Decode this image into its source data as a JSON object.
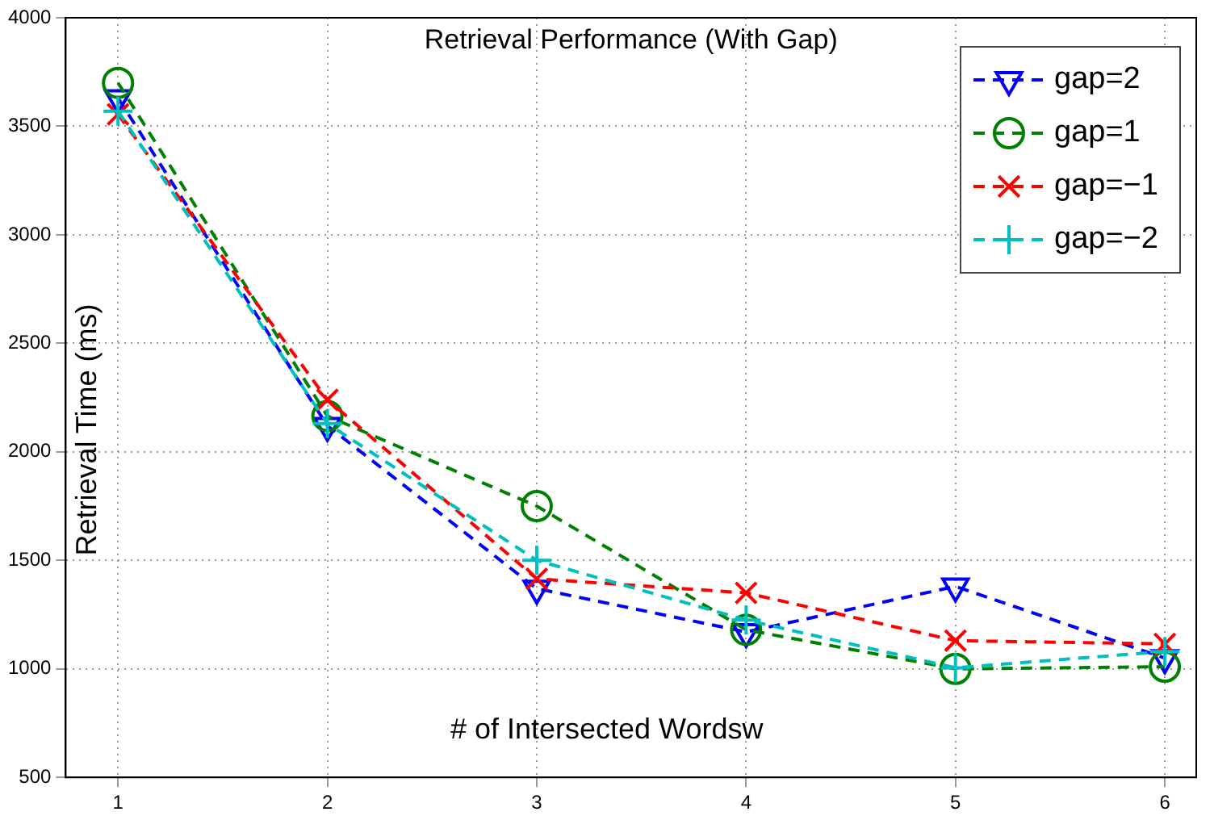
{
  "chart_data": {
    "type": "line",
    "title": "Retrieval Performance (With Gap)",
    "xlabel": "# of Intersected Wordsw",
    "ylabel": "Retrieval Time (ms)",
    "x": [
      1,
      2,
      3,
      4,
      5,
      6
    ],
    "xlim": [
      0.75,
      6.15
    ],
    "xticks": [
      1,
      2,
      3,
      4,
      5,
      6
    ],
    "ylim": [
      500,
      4000
    ],
    "yticks": [
      500,
      1000,
      1500,
      2000,
      2500,
      3000,
      3500,
      4000
    ],
    "grid": true,
    "legend": "top right",
    "line_style": "dashed",
    "series": [
      {
        "name": "gap=2",
        "color": "#0000ff",
        "marker": "triangle",
        "values": [
          3630,
          2120,
          1370,
          1170,
          1380,
          1050
        ]
      },
      {
        "name": "gap=1",
        "color": "#008000",
        "marker": "circle",
        "values": [
          3700,
          2165,
          1750,
          1180,
          1000,
          1010
        ]
      },
      {
        "name": "gap=−1",
        "color": "#ff0000",
        "marker": "cross",
        "values": [
          3555,
          2240,
          1415,
          1350,
          1130,
          1115
        ]
      },
      {
        "name": "gap=−2",
        "color": "#00bfbf",
        "marker": "plus",
        "values": [
          3570,
          2130,
          1500,
          1225,
          1005,
          1080
        ]
      }
    ]
  }
}
